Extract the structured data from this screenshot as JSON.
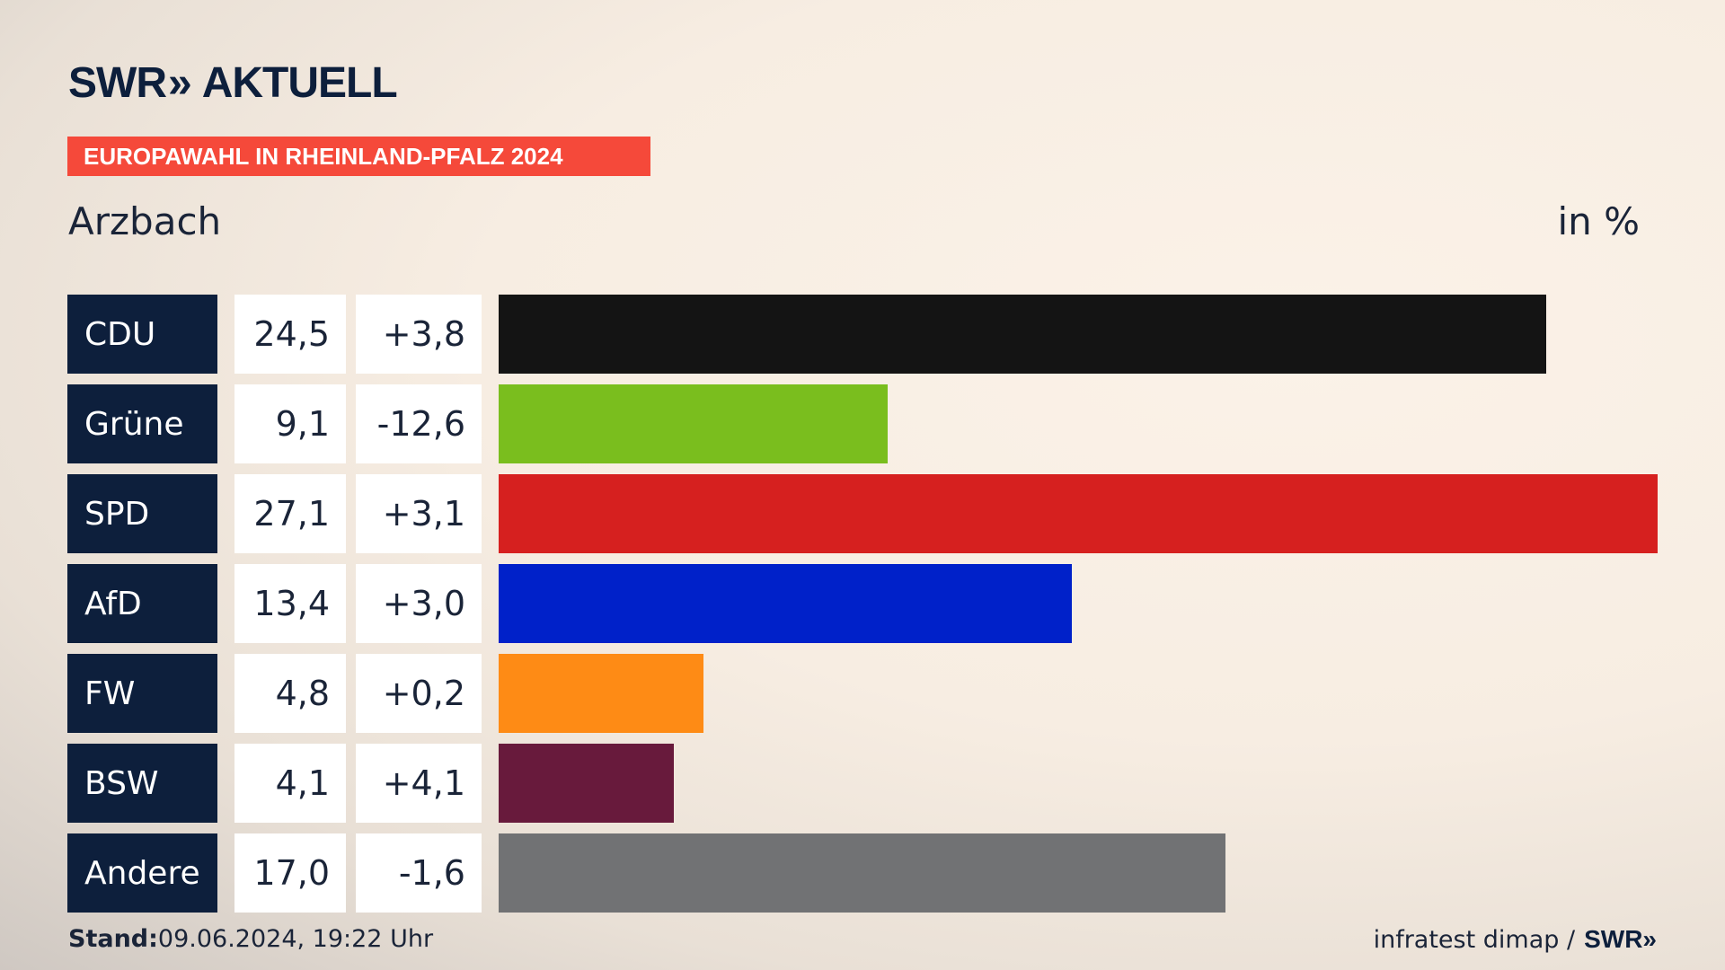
{
  "header": {
    "logo_text": "SWR",
    "logo_chevrons": "»",
    "logo_suffix": "AKTUELL",
    "tag": "EUROPAWAHL IN RHEINLAND-PFALZ 2024",
    "location": "Arzbach",
    "unit": "in %"
  },
  "footer": {
    "stand_label": "Stand:",
    "stand_value": "09.06.2024, 19:22 Uhr",
    "source": "infratest dimap /",
    "source_logo": "SWR»"
  },
  "chart_data": {
    "type": "bar",
    "orientation": "horizontal",
    "categories": [
      "CDU",
      "Grüne",
      "SPD",
      "AfD",
      "FW",
      "BSW",
      "Andere"
    ],
    "values": [
      24.5,
      9.1,
      27.1,
      13.4,
      4.8,
      4.1,
      17.0
    ],
    "value_labels": [
      "24,5",
      "9,1",
      "27,1",
      "13,4",
      "4,8",
      "4,1",
      "17,0"
    ],
    "diff_labels": [
      "+3,8",
      "-12,6",
      "+3,1",
      "+3,0",
      "+0,2",
      "+4,1",
      "-1,6"
    ],
    "diffs": [
      3.8,
      -12.6,
      3.1,
      3.0,
      0.2,
      4.1,
      -1.6
    ],
    "colors": [
      "#141414",
      "#7abe1e",
      "#d6201f",
      "#0021c9",
      "#fe8b15",
      "#681a3c",
      "#717274"
    ],
    "xlim": [
      0,
      27.1
    ]
  }
}
